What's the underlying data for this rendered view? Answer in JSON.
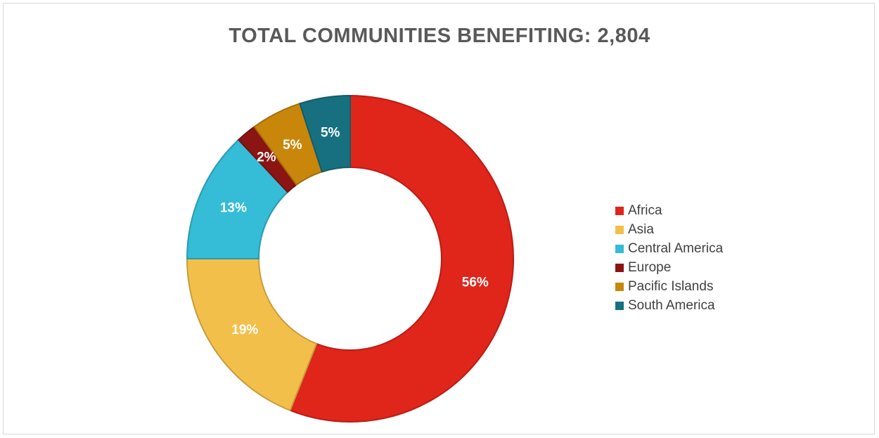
{
  "chart_data": {
    "type": "pie",
    "variant": "donut",
    "title": "TOTAL COMMUNITIES BENEFITING: 2,804",
    "legend_position": "right",
    "slices": [
      {
        "label": "Africa",
        "value": 56,
        "display": "56%",
        "color": "#e0251b"
      },
      {
        "label": "Asia",
        "value": 19,
        "display": "19%",
        "color": "#f2c04a"
      },
      {
        "label": "Central America",
        "value": 13,
        "display": "13%",
        "color": "#35bcd7"
      },
      {
        "label": "Europe",
        "value": 2,
        "display": "2%",
        "color": "#8b1512"
      },
      {
        "label": "Pacific Islands",
        "value": 5,
        "display": "5%",
        "color": "#c8870b"
      },
      {
        "label": "South America",
        "value": 5,
        "display": "5%",
        "color": "#17707f"
      }
    ]
  }
}
